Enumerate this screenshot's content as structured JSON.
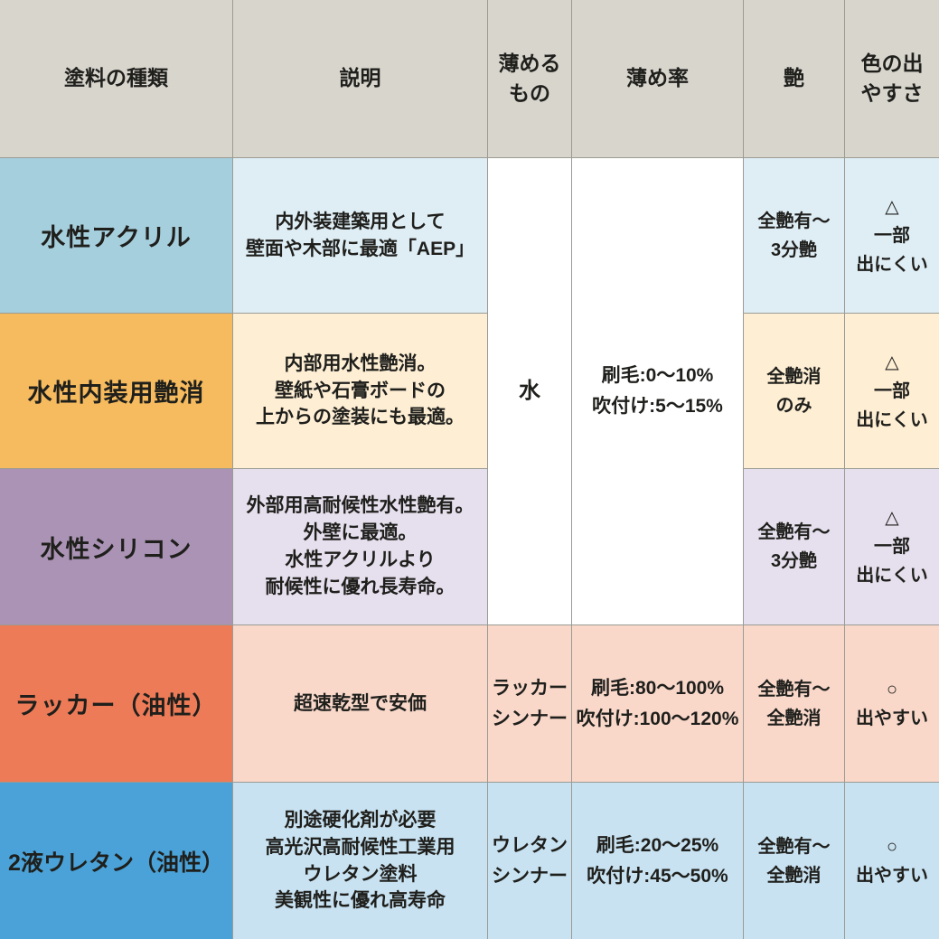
{
  "colors": {
    "header_bg": "#d8d5cd",
    "grid_line": "#9b9b94",
    "text": "#1f1f1c",
    "white_cell": "#ffffff"
  },
  "table": {
    "headers": [
      "塗料の種類",
      "説明",
      "薄める\nもの",
      "薄め率",
      "艶",
      "色の出\nやすさ"
    ],
    "merged": {
      "thinner": "水",
      "ratio": "刷毛:0〜10%\n吹付け:5〜15%"
    },
    "rows": [
      {
        "name": "水性アクリル",
        "description": "内外装建築用として\n壁面や木部に最適「AEP」",
        "gloss": "全艶有〜\n3分艶",
        "color_ease": "△\n一部\n出にくい",
        "colors": {
          "name_bg": "#a6cfdd",
          "cell_bg": "#dfeef5"
        }
      },
      {
        "name": "水性内装用艶消",
        "description": "内部用水性艶消。\n壁紙や石膏ボードの\n上からの塗装にも最適。",
        "gloss": "全艶消\nのみ",
        "color_ease": "△\n一部\n出にくい",
        "colors": {
          "name_bg": "#f6bb5e",
          "cell_bg": "#fdeed4"
        }
      },
      {
        "name": "水性シリコン",
        "description": "外部用高耐候性水性艶有。\n外壁に最適。\n水性アクリルより\n耐候性に優れ長寿命。",
        "gloss": "全艶有〜\n3分艶",
        "color_ease": "△\n一部\n出にくい",
        "colors": {
          "name_bg": "#ab93b5",
          "cell_bg": "#e6dfed"
        }
      },
      {
        "name": "ラッカー（油性）",
        "description": "超速乾型で安価",
        "thinner": "ラッカー\nシンナー",
        "ratio": "刷毛:80〜100%\n吹付け:100〜120%",
        "gloss": "全艶有〜\n全艶消",
        "color_ease": "○\n出やすい",
        "colors": {
          "name_bg": "#ee7b58",
          "cell_bg": "#f9d8ca"
        }
      },
      {
        "name": "2液ウレタン（油性）",
        "description": "別途硬化剤が必要\n高光沢高耐候性工業用\nウレタン塗料\n美観性に優れ高寿命",
        "thinner": "ウレタン\nシンナー",
        "ratio": "刷毛:20〜25%\n吹付け:45〜50%",
        "gloss": "全艶有〜\n全艶消",
        "color_ease": "○\n出やすい",
        "colors": {
          "name_bg": "#4aa2d8",
          "cell_bg": "#c8e2f1"
        }
      }
    ]
  },
  "chart_data": {
    "type": "table",
    "title": "塗料の種類 比較表",
    "columns": [
      "塗料の種類",
      "説明",
      "薄めるもの",
      "薄め率",
      "艶",
      "色の出やすさ"
    ],
    "rows": [
      [
        "水性アクリル",
        "内外装建築用として壁面や木部に最適「AEP」",
        "水",
        "刷毛:0〜10% 吹付け:5〜15%",
        "全艶有〜3分艶",
        "△ 一部出にくい"
      ],
      [
        "水性内装用艶消",
        "内部用水性艶消。壁紙や石膏ボードの上からの塗装にも最適。",
        "水",
        "刷毛:0〜10% 吹付け:5〜15%",
        "全艶消のみ",
        "△ 一部出にくい"
      ],
      [
        "水性シリコン",
        "外部用高耐候性水性艶有。外壁に最適。水性アクリルより耐候性に優れ長寿命。",
        "水",
        "刷毛:0〜10% 吹付け:5〜15%",
        "全艶有〜3分艶",
        "△ 一部出にくい"
      ],
      [
        "ラッカー（油性）",
        "超速乾型で安価",
        "ラッカーシンナー",
        "刷毛:80〜100% 吹付け:100〜120%",
        "全艶有〜全艶消",
        "○ 出やすい"
      ],
      [
        "2液ウレタン（油性）",
        "別途硬化剤が必要 高光沢高耐候性工業用ウレタン塗料 美観性に優れ高寿命",
        "ウレタンシンナー",
        "刷毛:20〜25% 吹付け:45〜50%",
        "全艶有〜全艶消",
        "○ 出やすい"
      ]
    ]
  }
}
